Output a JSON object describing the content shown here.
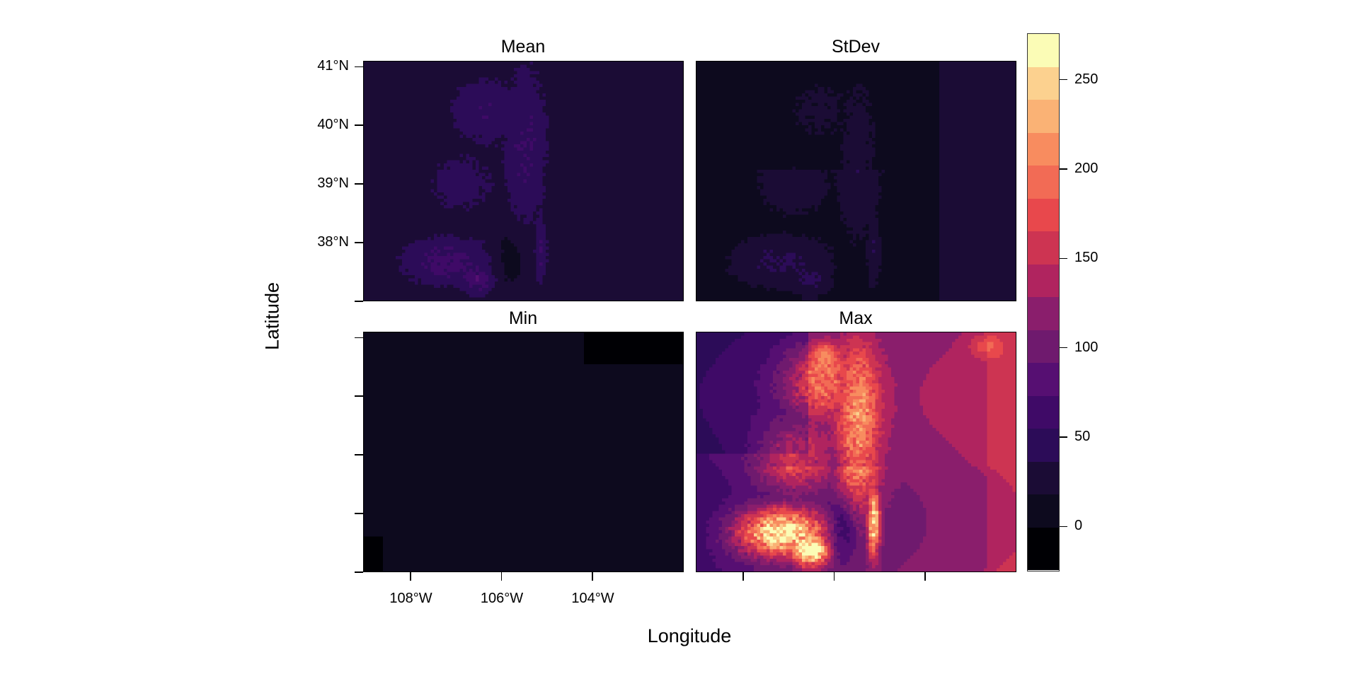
{
  "chart_data": {
    "type": "heatmap",
    "panels": [
      {
        "title": "Mean"
      },
      {
        "title": "StDev"
      },
      {
        "title": "Min"
      },
      {
        "title": "Max"
      }
    ],
    "xlabel": "Longitude",
    "ylabel": "Latitude",
    "x_ticks": [
      "108°W",
      "106°W",
      "104°W"
    ],
    "x_tick_values": [
      -108,
      -106,
      -104
    ],
    "y_ticks": [
      "41°N",
      "40°N",
      "39°N",
      "38°N"
    ],
    "y_tick_values": [
      41,
      40,
      39,
      38
    ],
    "xlim": [
      -109.05,
      -102.0
    ],
    "ylim": [
      37.0,
      41.1
    ],
    "colorbar": {
      "ticks": [
        "0",
        "50",
        "100",
        "150",
        "200",
        "250"
      ],
      "tick_values": [
        0,
        50,
        100,
        150,
        200,
        250
      ],
      "range": [
        -24,
        276
      ],
      "breaks": [
        -24,
        0,
        18.4,
        36.8,
        55.2,
        73.6,
        92,
        110.4,
        128.8,
        147.2,
        165.6,
        184,
        202.4,
        220.8,
        239.2,
        257.6,
        276
      ],
      "colors": [
        "#000004",
        "#0d0a1e",
        "#1b0c35",
        "#2c0c58",
        "#3f0a67",
        "#560f72",
        "#6f1a6e",
        "#8a1e6c",
        "#b0245f",
        "#cd3452",
        "#e8484c",
        "#f26b55",
        "#f88c5f",
        "#fab275",
        "#fcd18f",
        "#fbfcb6"
      ]
    }
  }
}
